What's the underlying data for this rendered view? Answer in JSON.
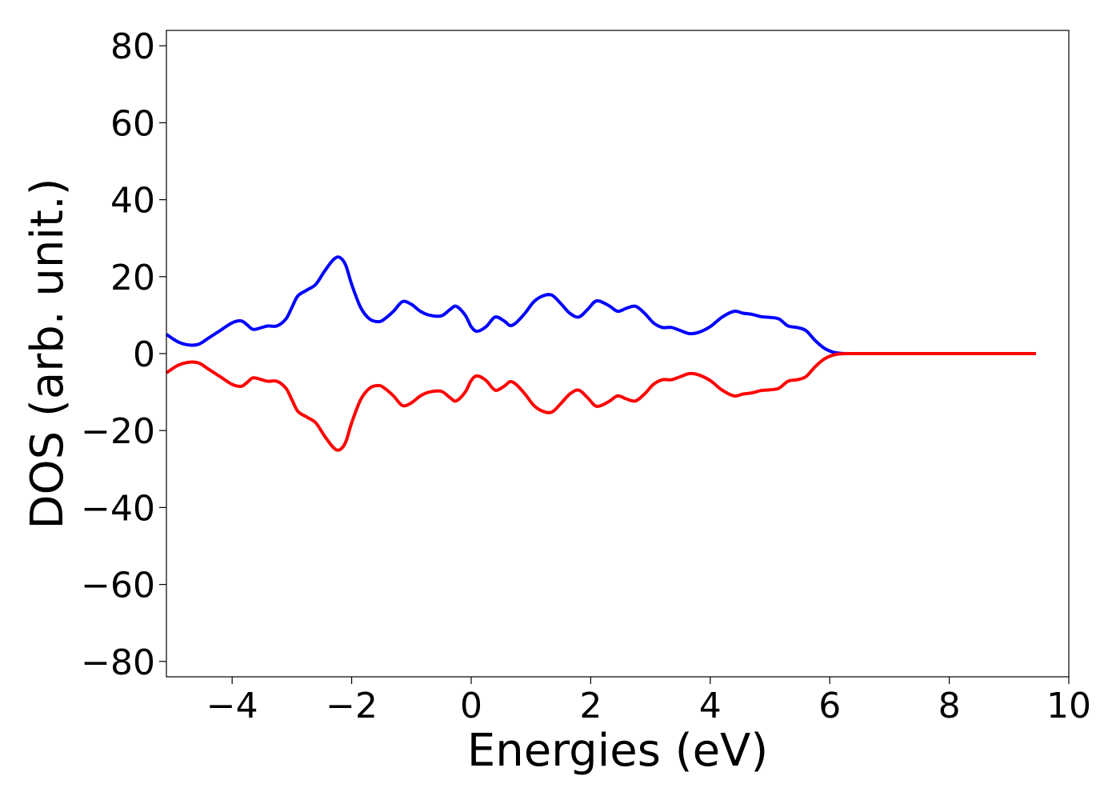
{
  "chart_data": {
    "type": "line",
    "title": "",
    "xlabel": "Energies (eV)",
    "ylabel": "DOS (arb. unit.)",
    "xlim": [
      -5.1,
      10.0
    ],
    "ylim": [
      -84,
      84
    ],
    "xticks": [
      -4,
      -2,
      0,
      2,
      4,
      6,
      8,
      10
    ],
    "xtick_labels": [
      "−4",
      "−2",
      "0",
      "2",
      "4",
      "6",
      "8",
      "10"
    ],
    "yticks": [
      80,
      60,
      40,
      20,
      0,
      -20,
      -40,
      -60,
      -80
    ],
    "ytick_labels": [
      "80",
      "60",
      "40",
      "20",
      "0",
      "−20",
      "−40",
      "−60",
      "−80"
    ],
    "grid": false,
    "legend": "none",
    "series": [
      {
        "color": "#0000ff",
        "x": [
          -5.1,
          -4.9,
          -4.7,
          -4.55,
          -4.4,
          -4.2,
          -4.0,
          -3.85,
          -3.75,
          -3.65,
          -3.5,
          -3.4,
          -3.25,
          -3.1,
          -3.0,
          -2.9,
          -2.75,
          -2.6,
          -2.45,
          -2.3,
          -2.2,
          -2.1,
          -2.0,
          -1.85,
          -1.7,
          -1.55,
          -1.45,
          -1.3,
          -1.15,
          -1.0,
          -0.85,
          -0.7,
          -0.5,
          -0.35,
          -0.25,
          -0.1,
          0.0,
          0.1,
          0.25,
          0.4,
          0.55,
          0.65,
          0.75,
          0.9,
          1.05,
          1.2,
          1.35,
          1.5,
          1.65,
          1.8,
          1.95,
          2.1,
          2.3,
          2.45,
          2.6,
          2.75,
          2.9,
          3.05,
          3.2,
          3.35,
          3.5,
          3.65,
          3.8,
          4.0,
          4.2,
          4.4,
          4.55,
          4.7,
          4.85,
          5.0,
          5.15,
          5.3,
          5.45,
          5.6,
          5.75,
          5.9,
          6.05,
          6.2,
          6.4,
          6.6,
          7.0,
          8.0,
          9.0,
          9.45
        ],
        "y": [
          5,
          3,
          2.2,
          2.5,
          4,
          6,
          8,
          8.5,
          7.5,
          6.3,
          6.8,
          7.2,
          7.2,
          9,
          12,
          15,
          16.5,
          18,
          21.5,
          24.5,
          25,
          23,
          18,
          12,
          9,
          8.3,
          9,
          11,
          13.5,
          12.8,
          11,
          10,
          9.8,
          11.5,
          12.3,
          10,
          7,
          5.8,
          7,
          9.5,
          8.5,
          7.3,
          8,
          10.5,
          13.5,
          15,
          15.2,
          13,
          10.5,
          9.5,
          11.5,
          13.7,
          12.5,
          11,
          11.8,
          12.3,
          10.5,
          8,
          6.8,
          6.8,
          6,
          5.2,
          5.5,
          7,
          9.5,
          11,
          10.5,
          10.2,
          9.6,
          9.4,
          9,
          7.2,
          6.8,
          6,
          3.5,
          1.5,
          0.4,
          0.05,
          0,
          0,
          0,
          0,
          0,
          0
        ]
      },
      {
        "color": "#ff0000",
        "x": [
          -5.1,
          -4.9,
          -4.7,
          -4.55,
          -4.4,
          -4.2,
          -4.0,
          -3.85,
          -3.75,
          -3.65,
          -3.5,
          -3.4,
          -3.25,
          -3.1,
          -3.0,
          -2.9,
          -2.75,
          -2.6,
          -2.45,
          -2.3,
          -2.2,
          -2.1,
          -2.0,
          -1.85,
          -1.7,
          -1.55,
          -1.45,
          -1.3,
          -1.15,
          -1.0,
          -0.85,
          -0.7,
          -0.5,
          -0.35,
          -0.25,
          -0.1,
          0.0,
          0.1,
          0.25,
          0.4,
          0.55,
          0.65,
          0.75,
          0.9,
          1.05,
          1.2,
          1.35,
          1.5,
          1.65,
          1.8,
          1.95,
          2.1,
          2.3,
          2.45,
          2.6,
          2.75,
          2.9,
          3.05,
          3.2,
          3.35,
          3.5,
          3.65,
          3.8,
          4.0,
          4.2,
          4.4,
          4.55,
          4.7,
          4.85,
          5.0,
          5.15,
          5.3,
          5.45,
          5.6,
          5.75,
          5.9,
          6.05,
          6.2,
          6.4,
          6.6,
          7.0,
          8.0,
          9.0,
          9.45
        ],
        "y": [
          -5,
          -3,
          -2.2,
          -2.5,
          -4,
          -6,
          -8,
          -8.5,
          -7.5,
          -6.3,
          -6.8,
          -7.2,
          -7.2,
          -9,
          -12,
          -15,
          -16.5,
          -18,
          -21.5,
          -24.5,
          -25,
          -23,
          -18,
          -12,
          -9,
          -8.3,
          -9,
          -11,
          -13.5,
          -12.8,
          -11,
          -10,
          -9.8,
          -11.5,
          -12.3,
          -10,
          -7,
          -5.8,
          -7,
          -9.5,
          -8.5,
          -7.3,
          -8,
          -10.5,
          -13.5,
          -15,
          -15.2,
          -13,
          -10.5,
          -9.5,
          -11.5,
          -13.7,
          -12.5,
          -11,
          -11.8,
          -12.3,
          -10.5,
          -8,
          -6.8,
          -6.8,
          -6,
          -5.2,
          -5.5,
          -7,
          -9.5,
          -11,
          -10.5,
          -10.2,
          -9.6,
          -9.4,
          -9,
          -7.2,
          -6.8,
          -6,
          -3.5,
          -1.5,
          -0.4,
          -0.05,
          0,
          0,
          0,
          0,
          0,
          0
        ]
      }
    ]
  }
}
